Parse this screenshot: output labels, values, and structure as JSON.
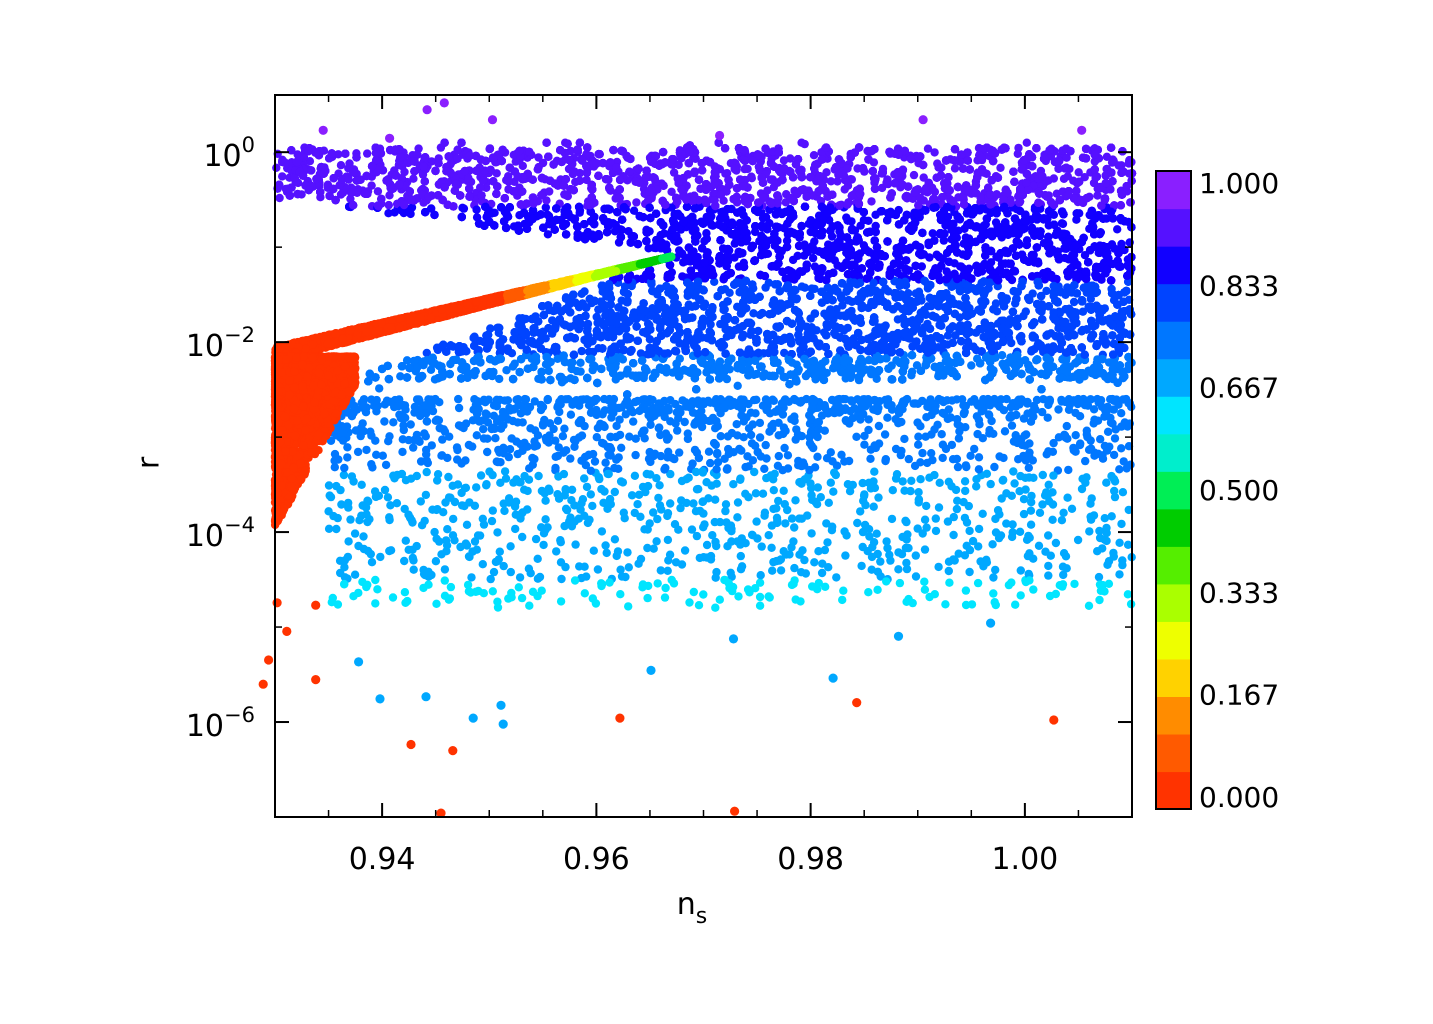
{
  "chart_data": {
    "type": "scatter",
    "title": "",
    "xlabel": "n",
    "xlabel_subscript": "s",
    "ylabel": "r",
    "xlim": [
      0.93,
      1.01
    ],
    "ylim": [
      1e-07,
      4
    ],
    "yscale": "log",
    "grid": false,
    "x_ticks": [
      {
        "value": 0.94,
        "label": "0.94"
      },
      {
        "value": 0.96,
        "label": "0.96"
      },
      {
        "value": 0.98,
        "label": "0.98"
      },
      {
        "value": 1.0,
        "label": "1.00"
      }
    ],
    "y_ticks": [
      {
        "value": 1,
        "base": "10",
        "exp": "0"
      },
      {
        "value": 0.01,
        "base": "10",
        "exp": "−2"
      },
      {
        "value": 0.0001,
        "base": "10",
        "exp": "−4"
      },
      {
        "value": 1e-06,
        "base": "10",
        "exp": "−6"
      }
    ],
    "colorbar": {
      "range": [
        0,
        1
      ],
      "levels": 16,
      "labels": [
        "1.000",
        "0.833",
        "0.667",
        "0.500",
        "0.333",
        "0.167",
        "0.000"
      ],
      "colors": [
        "#ff3300",
        "#ff5a00",
        "#ff8c00",
        "#ffd200",
        "#eeff00",
        "#aaff00",
        "#55ee00",
        "#00cc00",
        "#00ee55",
        "#00eecc",
        "#00e5ff",
        "#00a8ff",
        "#0077ff",
        "#0044ff",
        "#1100ff",
        "#5511ff",
        "#8a1fff"
      ]
    },
    "highlighted_outliers": [
      {
        "x": 0.9458,
        "y": 3.3,
        "c": 0.98
      },
      {
        "x": 0.9345,
        "y": 1.7,
        "c": 0.98
      },
      {
        "x": 0.9503,
        "y": 2.2,
        "c": 0.98
      },
      {
        "x": 0.9407,
        "y": 1.4,
        "c": 0.98
      },
      {
        "x": 0.9442,
        "y": 2.8,
        "c": 0.98
      },
      {
        "x": 0.9905,
        "y": 2.2,
        "c": 0.98
      },
      {
        "x": 1.0053,
        "y": 1.7,
        "c": 0.98
      },
      {
        "x": 0.9715,
        "y": 1.5,
        "c": 0.98
      },
      {
        "x": 0.9338,
        "y": 1.7e-05,
        "c": 0.02
      },
      {
        "x": 0.9338,
        "y": 2.8e-06,
        "c": 0.02
      },
      {
        "x": 0.9289,
        "y": 2.5e-06,
        "c": 0.02
      },
      {
        "x": 0.9294,
        "y": 4.5e-06,
        "c": 0.02
      },
      {
        "x": 0.9311,
        "y": 9e-06,
        "c": 0.02
      },
      {
        "x": 0.9302,
        "y": 1.8e-05,
        "c": 0.02
      },
      {
        "x": 0.9427,
        "y": 5.8e-07,
        "c": 0.02
      },
      {
        "x": 0.9466,
        "y": 5e-07,
        "c": 0.02
      },
      {
        "x": 0.9455,
        "y": 1.1e-07,
        "c": 0.02
      },
      {
        "x": 0.9729,
        "y": 1.15e-07,
        "c": 0.02
      },
      {
        "x": 0.9622,
        "y": 1.1e-06,
        "c": 0.02
      },
      {
        "x": 0.9843,
        "y": 1.6e-06,
        "c": 0.02
      },
      {
        "x": 1.0027,
        "y": 1.05e-06,
        "c": 0.02
      },
      {
        "x": 0.9398,
        "y": 1.75e-06,
        "c": 0.69
      },
      {
        "x": 0.9441,
        "y": 1.85e-06,
        "c": 0.69
      },
      {
        "x": 0.9485,
        "y": 1.1e-06,
        "c": 0.69
      },
      {
        "x": 0.9511,
        "y": 1.5e-06,
        "c": 0.69
      },
      {
        "x": 0.9513,
        "y": 9.5e-07,
        "c": 0.69
      },
      {
        "x": 0.9651,
        "y": 3.5e-06,
        "c": 0.69
      },
      {
        "x": 0.9821,
        "y": 2.9e-06,
        "c": 0.69
      },
      {
        "x": 0.9882,
        "y": 8e-06,
        "c": 0.69
      },
      {
        "x": 0.9728,
        "y": 7.5e-06,
        "c": 0.69
      },
      {
        "x": 0.9968,
        "y": 1.1e-05,
        "c": 0.69
      },
      {
        "x": 0.9378,
        "y": 4.3e-06,
        "c": 0.69
      }
    ],
    "populations": [
      {
        "name": "",
        "x_range": [
          0.93,
          1.01
        ],
        "y_range": [
          0.005,
          1.2
        ],
        "color_value_range": [
          0.75,
          0.97
        ],
        "density": "dense"
      },
      {
        "name": "",
        "x_range": [
          0.93,
          0.967
        ],
        "y_range": [
          0.0005,
          0.09
        ],
        "color_value_range": [
          0.0,
          0.45
        ],
        "density": "dense-band"
      },
      {
        "name": "",
        "x_range": [
          0.93,
          0.936
        ],
        "y_range": [
          3e-05,
          0.007
        ],
        "color_value_range": [
          0.0,
          0.05
        ],
        "density": "medium"
      },
      {
        "name": "",
        "x_range": [
          0.936,
          1.01
        ],
        "y_range": [
          5e-06,
          0.003
        ],
        "color_value_range": [
          0.62,
          0.78
        ],
        "density": "sparse"
      }
    ]
  }
}
